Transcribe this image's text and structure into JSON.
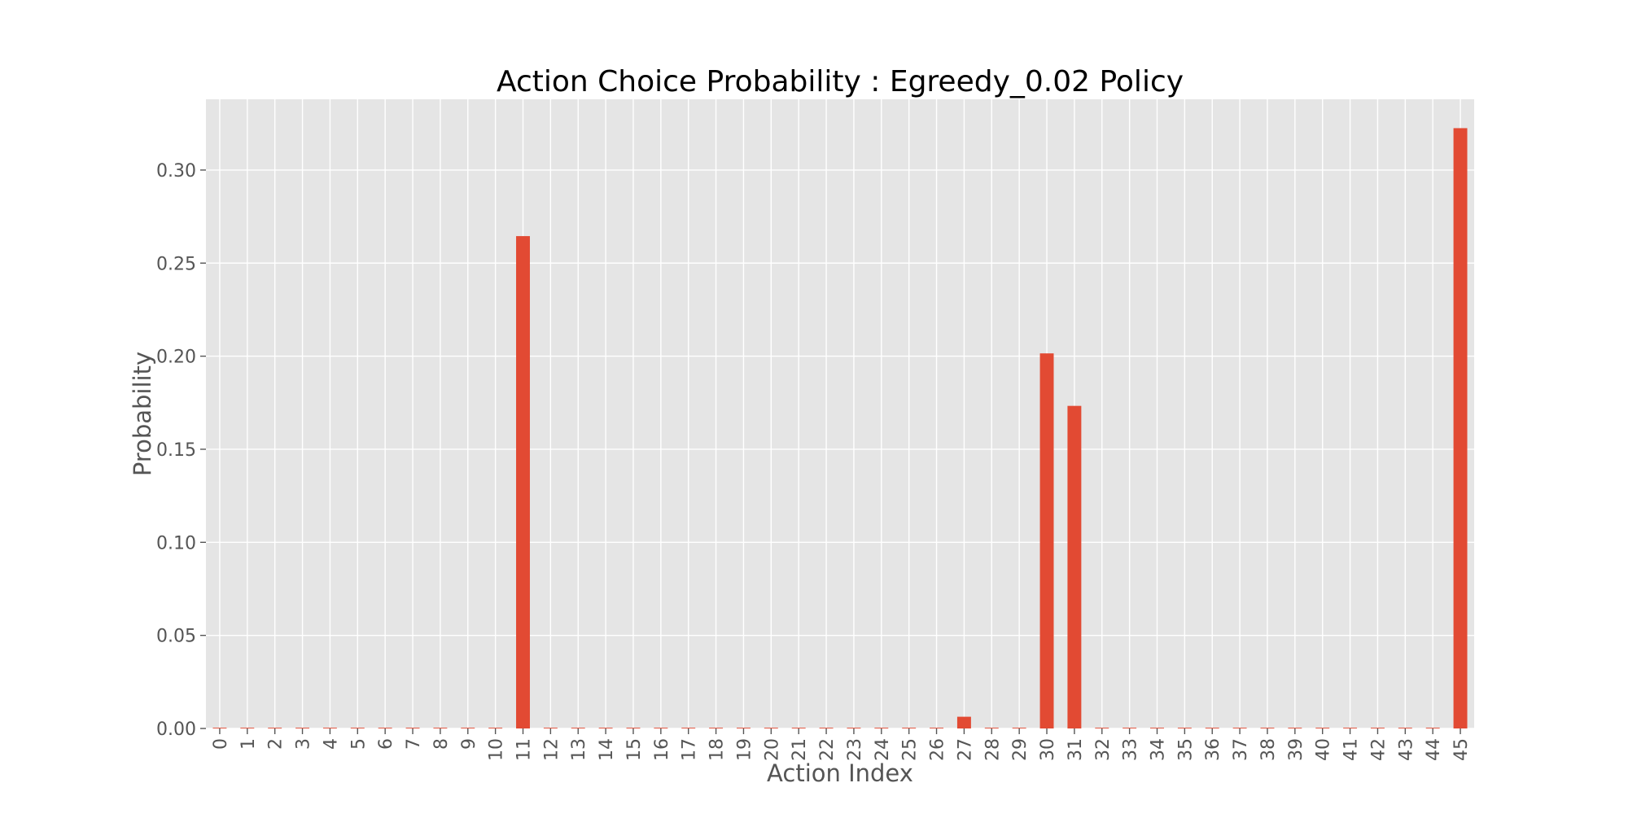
{
  "chart_data": {
    "type": "bar",
    "title": "Action Choice Probability : Egreedy_0.02 Policy",
    "xlabel": "Action Index",
    "ylabel": "Probability",
    "categories": [
      "0",
      "1",
      "2",
      "3",
      "4",
      "5",
      "6",
      "7",
      "8",
      "9",
      "10",
      "11",
      "12",
      "13",
      "14",
      "15",
      "16",
      "17",
      "18",
      "19",
      "20",
      "21",
      "22",
      "23",
      "24",
      "25",
      "26",
      "27",
      "28",
      "29",
      "30",
      "31",
      "32",
      "33",
      "34",
      "35",
      "36",
      "37",
      "38",
      "39",
      "40",
      "41",
      "42",
      "43",
      "44",
      "45"
    ],
    "values": [
      0.0004,
      0.0004,
      0.0004,
      0.0004,
      0.0004,
      0.0004,
      0.0004,
      0.0004,
      0.0004,
      0.0004,
      0.0004,
      0.2645,
      0.0004,
      0.0004,
      0.0004,
      0.0004,
      0.0004,
      0.0004,
      0.0004,
      0.0004,
      0.0004,
      0.0004,
      0.0004,
      0.0004,
      0.0004,
      0.0004,
      0.0004,
      0.0063,
      0.0004,
      0.0004,
      0.2015,
      0.1733,
      0.0004,
      0.0004,
      0.0004,
      0.0004,
      0.0004,
      0.0004,
      0.0004,
      0.0004,
      0.0004,
      0.0004,
      0.0004,
      0.0004,
      0.0004,
      0.3225
    ],
    "yticks": [
      "0.00",
      "0.05",
      "0.10",
      "0.15",
      "0.20",
      "0.25",
      "0.30"
    ],
    "ylim": [
      0,
      0.338
    ],
    "grid": true,
    "colors": {
      "bar": "#E24A33",
      "plot_bg": "#E5E5E5",
      "grid": "#FFFFFF"
    }
  }
}
